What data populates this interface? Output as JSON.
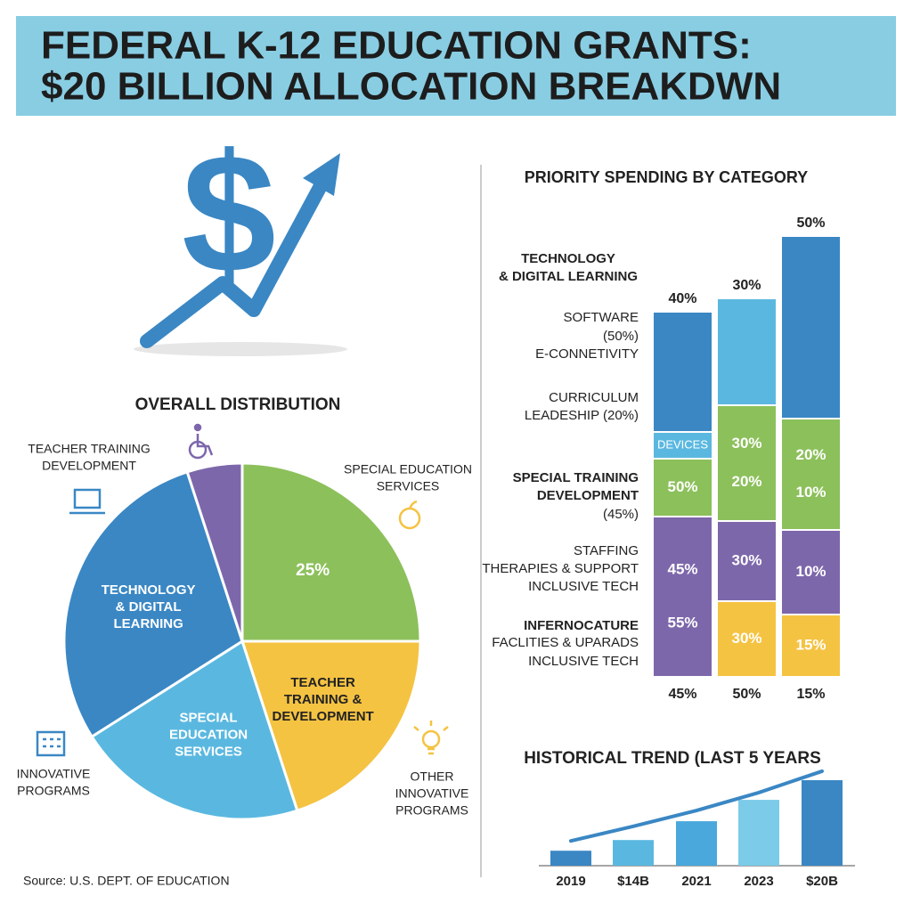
{
  "title": [
    "FEDERAL K-12 EDUCATION GRANTS:",
    "$20 BILLION ALLOCATION BREAKDWN"
  ],
  "source": "Source: U.S. DEPT. OF EDUCATION",
  "chart_data": [
    {
      "type": "pie",
      "title": "OVERALL DISTRIBUTION",
      "categories": [
        null,
        [
          "TEACHER",
          "TRAINING &",
          "DEVELOPMENT"
        ],
        [
          "SPECIAL",
          "EDUCATION",
          "SERVICES"
        ],
        [
          "TECHNOLOGY",
          "& DIGITAL",
          "LEARNING"
        ],
        null
      ],
      "values": [
        25,
        20,
        21,
        29,
        5
      ],
      "value_labels": [
        "25%",
        null,
        null,
        null,
        null
      ],
      "colors": [
        "#8cc05b",
        "#f5c342",
        "#5ab8e0",
        "#3a87c4",
        "#7d67ab"
      ],
      "annotations": [
        [
          "TEACHER TRAINING",
          "DEVELOPMENT"
        ],
        [
          "SPECIAL EDUCATION",
          "SERVICES"
        ],
        [
          "INNOVATIVE",
          "PROGRAMS"
        ],
        [
          "OTHER",
          "INNOVATIVE",
          "PROGRAMS"
        ]
      ]
    },
    {
      "type": "stacked_bar",
      "title": "PRIORITY SPENDING BY CATEGORY",
      "categories": [
        "45%",
        "50%",
        "15%"
      ],
      "top_labels": [
        "40%",
        "30%",
        "50%"
      ],
      "ylim": [
        0,
        100
      ],
      "series": [
        {
          "color": "#f5c342",
          "values": [
            0,
            17,
            14
          ],
          "labels": [
            [],
            [
              "30%"
            ],
            [
              "15%"
            ]
          ]
        },
        {
          "color": "#7d67ab",
          "values": [
            36,
            18,
            19
          ],
          "labels": [
            [
              "45%",
              "55%"
            ],
            [
              "30%"
            ],
            [
              "10%"
            ]
          ]
        },
        {
          "color": "#8cc05b",
          "values": [
            13,
            26,
            25
          ],
          "labels": [
            [
              "50%"
            ],
            [
              "30%",
              "20%"
            ],
            [
              "20%",
              "10%"
            ]
          ]
        },
        {
          "color": "#5ab8e0",
          "values": [
            6,
            24,
            0
          ],
          "labels": [
            [
              "DEVICES"
            ],
            [],
            []
          ]
        },
        {
          "color": "#3a87c4",
          "values": [
            27,
            0,
            41
          ],
          "labels": [
            [],
            [],
            []
          ]
        }
      ],
      "row_labels": [
        {
          "text": "TECHNOLOGY",
          "bold": true
        },
        {
          "text": "& DIGITAL LEARNING",
          "bold": true
        },
        {
          "text": "SOFTWARE",
          "bold": false
        },
        {
          "text": "(50%)",
          "bold": false
        },
        {
          "text": "E-CONNETIVITY",
          "bold": false
        },
        {
          "text": "CURRICULUM",
          "bold": false
        },
        {
          "text": "LEADESHIP (20%)",
          "bold": false
        },
        {
          "text": "SPECIAL TRAINING",
          "bold": true
        },
        {
          "text": "DEVELOPMENT",
          "bold": true
        },
        {
          "text": "(45%)",
          "bold": false
        },
        {
          "text": "STAFFING",
          "bold": false
        },
        {
          "text": "THERAPIES & SUPPORT",
          "bold": false
        },
        {
          "text": "INCLUSIVE TECH",
          "bold": false
        },
        {
          "text": "INFERNOCATURE",
          "bold": true
        },
        {
          "text": "FACLITIES & UPARADS",
          "bold": false
        },
        {
          "text": "INCLUSIVE TECH",
          "bold": false
        }
      ]
    },
    {
      "type": "bar_trend",
      "title": "HISTORICAL TREND (LAST 5 YEARS",
      "categories": [
        "2019",
        "$14B",
        "2021",
        "2023",
        "$20B"
      ],
      "values": [
        3.5,
        6,
        10.4,
        15.4,
        20
      ],
      "colors": [
        "#3a87c4",
        "#5ab8e0",
        "#4aa8dc",
        "#7ccbe8",
        "#3a87c4"
      ],
      "ylim": [
        0,
        25
      ],
      "trend": {
        "color": "#3a87c4",
        "values": [
          5.8,
          9.2,
          12.9,
          17.1,
          22.1
        ]
      }
    }
  ]
}
